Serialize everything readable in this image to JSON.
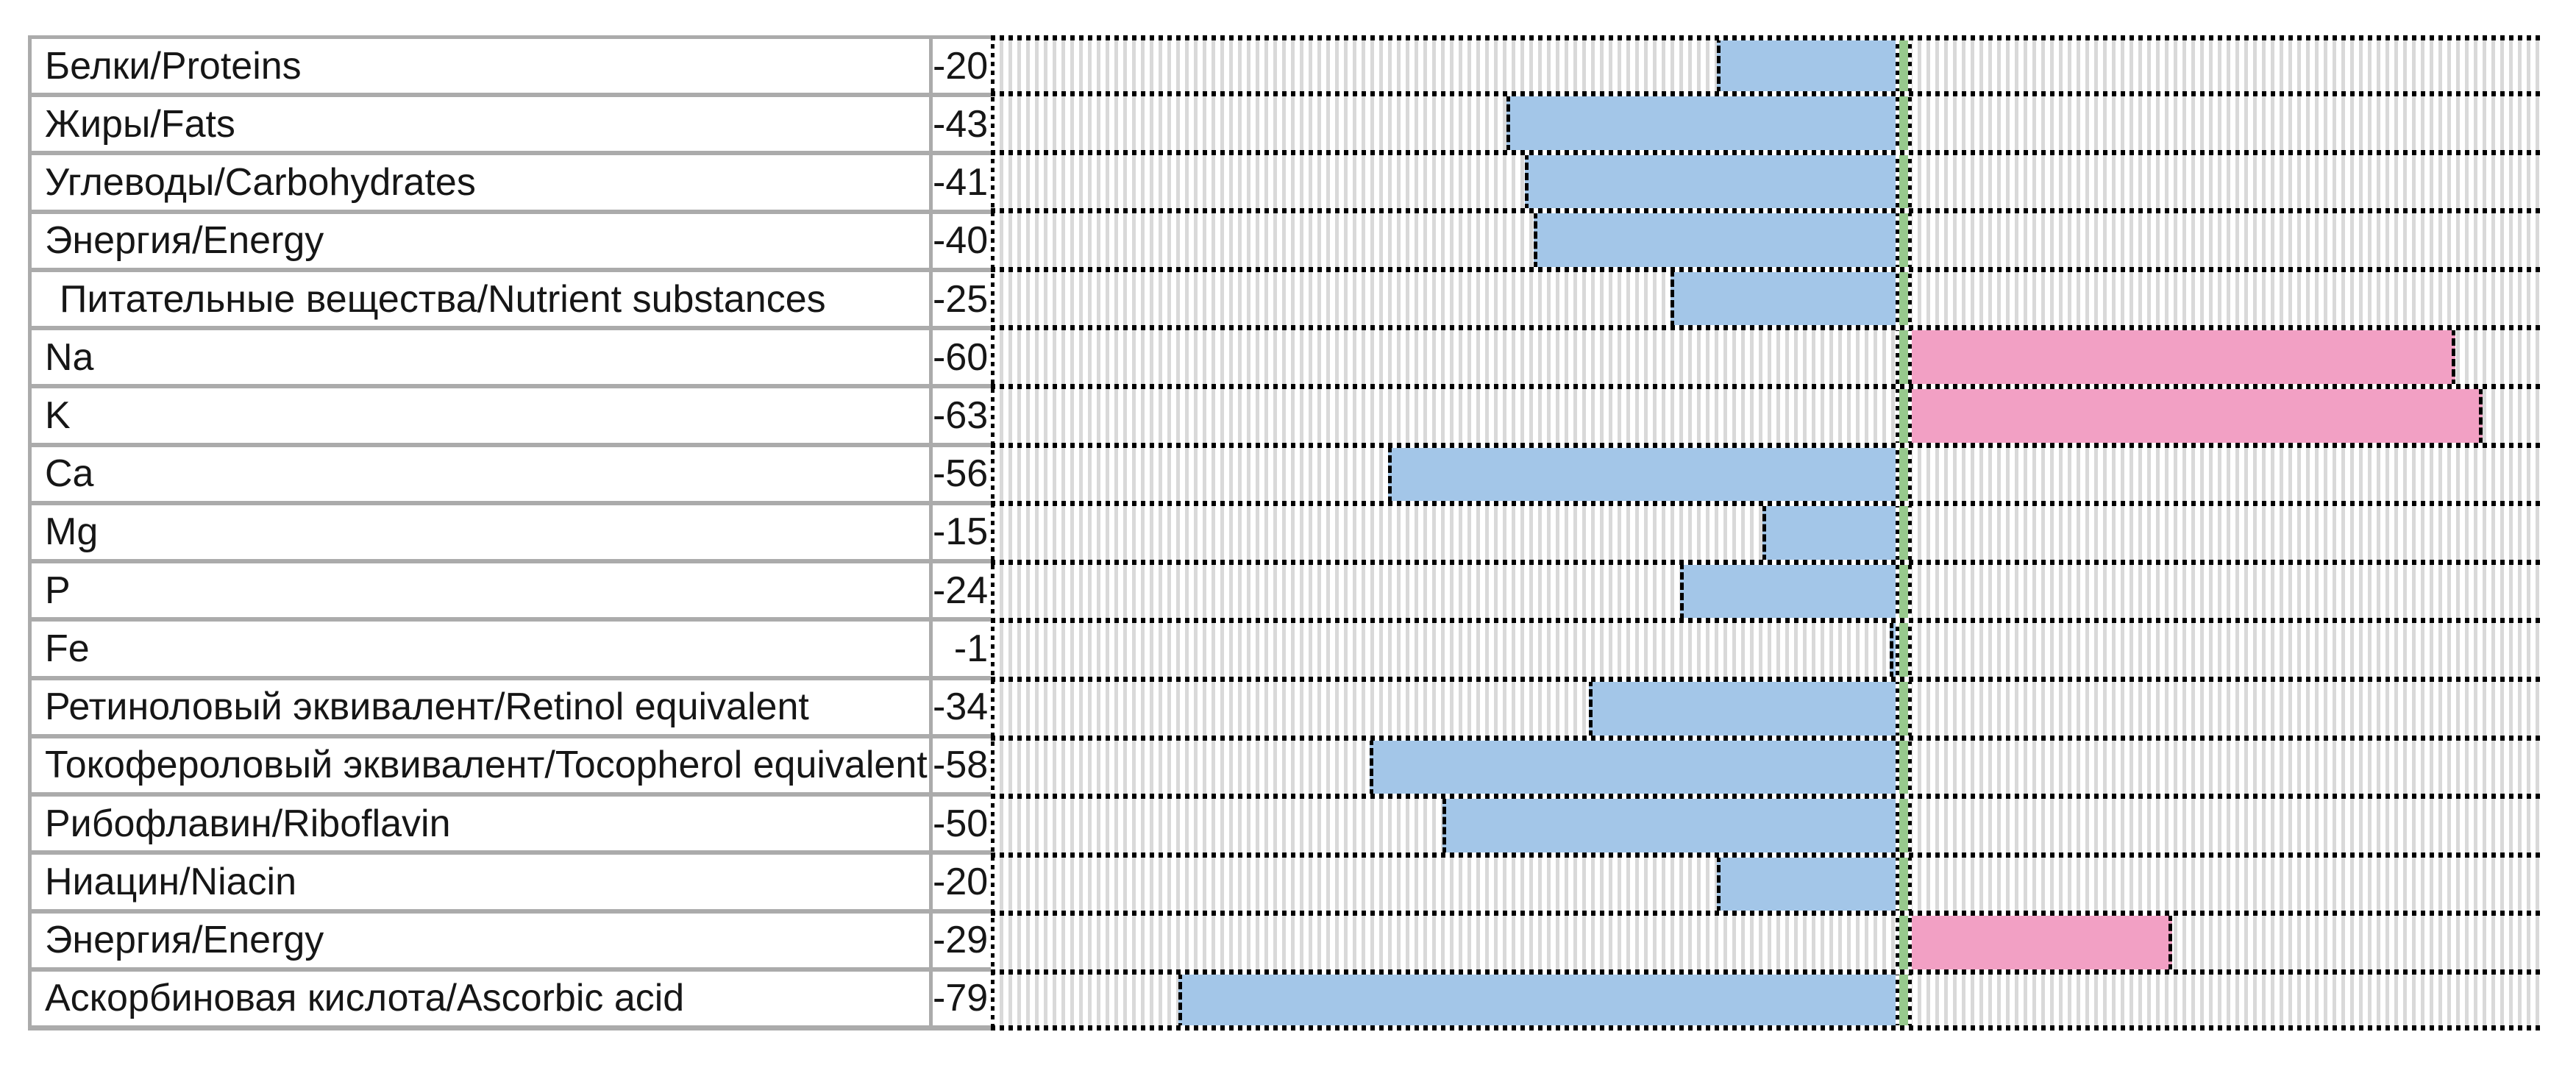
{
  "chart_data": {
    "type": "bar",
    "orientation": "horizontal",
    "title": "",
    "xlabel": "",
    "ylabel": "",
    "xlim": [
      -100,
      70
    ],
    "axis_position_percent": 58.824,
    "grid": "striped-vertical-hatch",
    "legend_position": "none",
    "rows": [
      {
        "label": "Белки/Proteins",
        "value": -20,
        "display": "-20",
        "side": "left",
        "indent": false
      },
      {
        "label": "Жиры/Fats",
        "value": -43,
        "display": "-43",
        "side": "left",
        "indent": false
      },
      {
        "label": "Углеводы/Carbohydrates",
        "value": -41,
        "display": "-41",
        "side": "left",
        "indent": false
      },
      {
        "label": "Энергия/Energy",
        "value": -40,
        "display": "-40",
        "side": "left",
        "indent": false
      },
      {
        "label": "Питательные вещества/Nutrient substances",
        "value": -25,
        "display": "-25",
        "side": "left",
        "indent": true
      },
      {
        "label": "Na",
        "value": -60,
        "display": "-60",
        "side": "right",
        "indent": false
      },
      {
        "label": "K",
        "value": -63,
        "display": "-63",
        "side": "right",
        "indent": false
      },
      {
        "label": "Ca",
        "value": -56,
        "display": "-56",
        "side": "left",
        "indent": false
      },
      {
        "label": "Mg",
        "value": -15,
        "display": "-15",
        "side": "left",
        "indent": false
      },
      {
        "label": "P",
        "value": -24,
        "display": "-24",
        "side": "left",
        "indent": false
      },
      {
        "label": "Fe",
        "value": -1,
        "display": "-1",
        "side": "left",
        "indent": false
      },
      {
        "label": "Ретиноловый эквивалент/Retinol equivalent",
        "value": -34,
        "display": "-34",
        "side": "left",
        "indent": false
      },
      {
        "label": "Токофероловый эквивалент/Tocopherol equivalent",
        "value": -58,
        "display": "-58",
        "side": "left",
        "indent": false
      },
      {
        "label": "Рибофлавин/Riboflavin",
        "value": -50,
        "display": "-50",
        "side": "left",
        "indent": false
      },
      {
        "label": "Ниацин/Niacin",
        "value": -20,
        "display": "-20",
        "side": "left",
        "indent": false
      },
      {
        "label": "Энергия/Energy",
        "value": -29,
        "display": "-29",
        "side": "right",
        "indent": false
      },
      {
        "label": "Аскорбиновая кислота/Ascorbic acid",
        "value": -79,
        "display": "-79",
        "side": "left",
        "indent": false
      }
    ],
    "colors": {
      "bar_left_blue": "#A3C6E8",
      "bar_right_pink": "#F2A0C4",
      "axis_green": "#97C98D",
      "stripe_gray": "#D9D9D9",
      "separator_gray": "#ABABAB",
      "dash_black": "#000000"
    }
  }
}
